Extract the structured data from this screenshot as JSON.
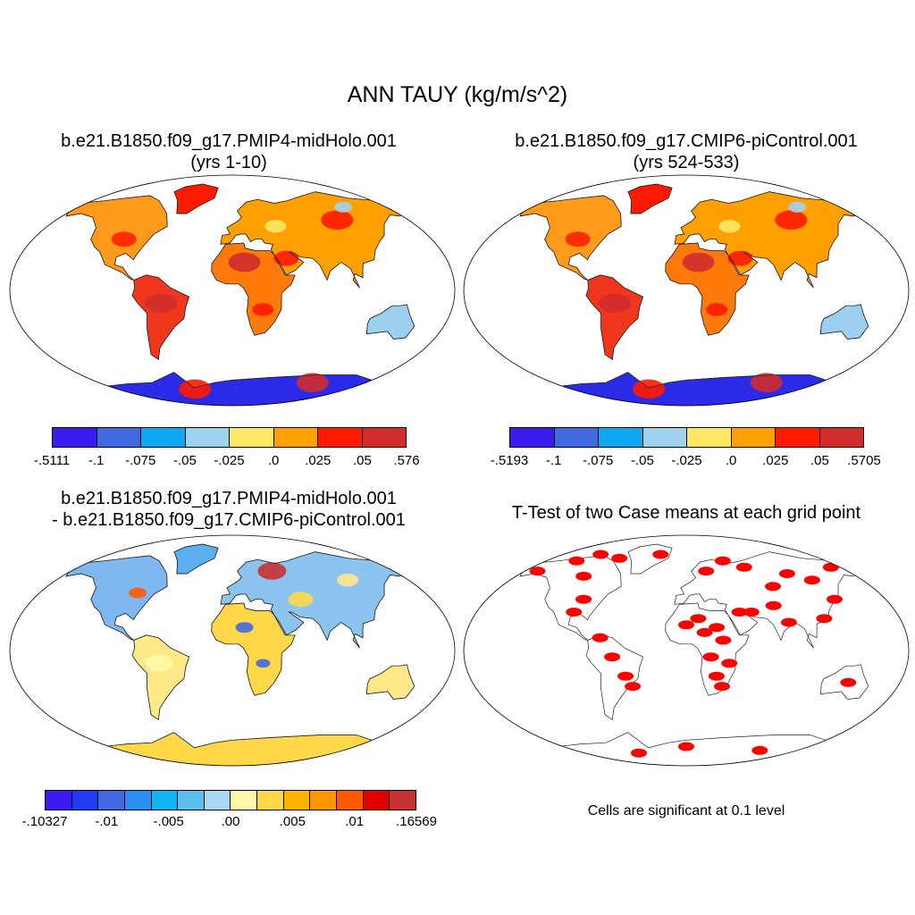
{
  "main_title": "ANN TAUY (kg/m/s^2)",
  "panels": [
    {
      "title_line1": "b.e21.B1850.f09_g17.PMIP4-midHolo.001",
      "title_line2": "(yrs 1-10)",
      "colorbar": {
        "colors": [
          "#3a1cf0",
          "#4169e1",
          "#0fa8f0",
          "#a0d2f0",
          "#ffe866",
          "#ffa000",
          "#ff1a00",
          "#d02c2c"
        ],
        "labels": [
          "-.5111",
          "-.1",
          "-.075",
          "-.05",
          "-.025",
          ".0",
          ".025",
          ".05",
          ".576"
        ]
      }
    },
    {
      "title_line1": "b.e21.B1850.f09_g17.CMIP6-piControl.001",
      "title_line2": "(yrs 524-533)",
      "colorbar": {
        "colors": [
          "#3a1cf0",
          "#4169e1",
          "#0fa8f0",
          "#a0d2f0",
          "#ffe866",
          "#ffa000",
          "#ff1a00",
          "#d02c2c"
        ],
        "labels": [
          "-.5193",
          "-.1",
          "-.075",
          "-.05",
          "-.025",
          ".0",
          ".025",
          ".05",
          ".5705"
        ]
      }
    },
    {
      "title_line1": "b.e21.B1850.f09_g17.PMIP4-midHolo.001",
      "title_line2": "- b.e21.B1850.f09_g17.CMIP6-piControl.001",
      "colorbar": {
        "colors": [
          "#3a1cf0",
          "#1e3cf5",
          "#4169e1",
          "#2a8ff0",
          "#0fb4f0",
          "#5ac0ee",
          "#a8d8f0",
          "#fff8a8",
          "#ffd84a",
          "#ffb400",
          "#ff9600",
          "#ff5a00",
          "#e00000",
          "#c83232"
        ],
        "labels": [
          "-.10327",
          "-.01",
          "-.005",
          ".00",
          ".005",
          ".01",
          ".16569"
        ]
      }
    },
    {
      "title_line1": "T-Test of two Case means at each grid point",
      "note": "Cells are significant at 0.1 level",
      "sig_color": "#ff0000"
    }
  ]
}
